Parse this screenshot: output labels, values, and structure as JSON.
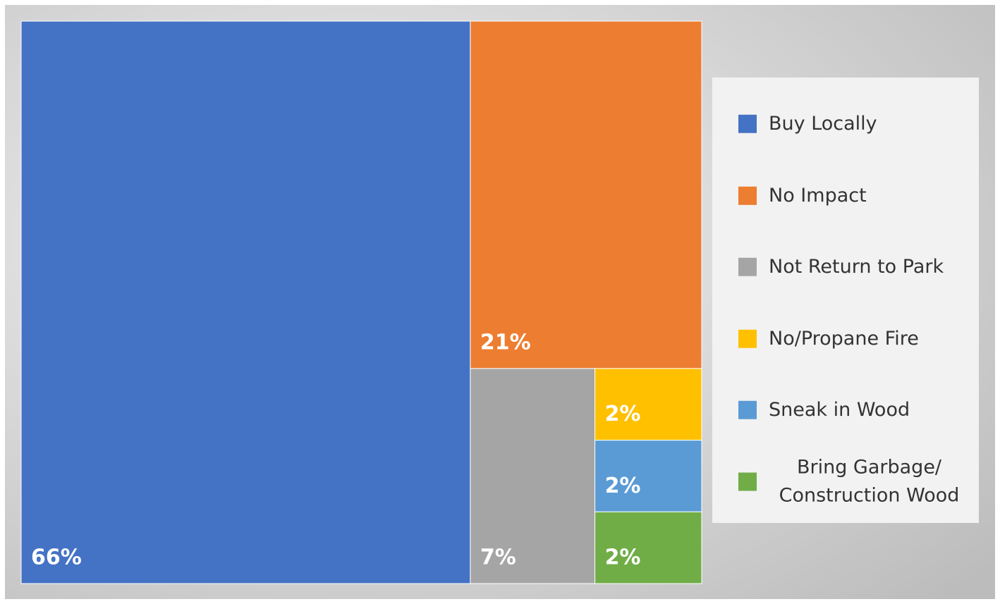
{
  "chart_data": {
    "type": "treemap",
    "categories": [
      "Buy Locally",
      "No Impact",
      "Not Return to Park",
      "No/Propane Fire",
      "Sneak in Wood",
      "Bring Garbage/ Construction Wood"
    ],
    "values": [
      66,
      21,
      7,
      2,
      2,
      2
    ],
    "value_labels": [
      "66%",
      "21%",
      "7%",
      "2%",
      "2%",
      "2%"
    ],
    "colors": [
      "#4472c4",
      "#ed7d31",
      "#a5a5a5",
      "#ffc000",
      "#5b9bd5",
      "#70ad47"
    ],
    "legend": "right"
  }
}
